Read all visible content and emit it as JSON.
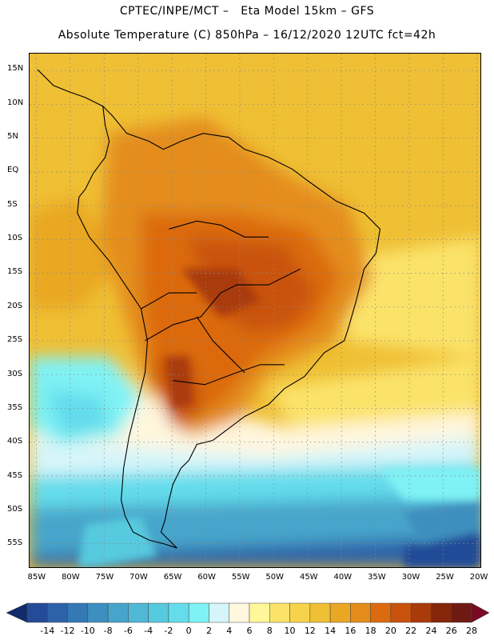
{
  "header": {
    "line1": "CPTEC/INPE/MCT –   Eta Model 15km – GFS",
    "line2": "Absolute Temperature (C) 850hPa – 16/12/2020 12UTC fct=42h"
  },
  "map": {
    "region": "South America",
    "lat_labels": [
      "15N",
      "10N",
      "5N",
      "EQ",
      "5S",
      "10S",
      "15S",
      "20S",
      "25S",
      "30S",
      "35S",
      "40S",
      "45S",
      "50S",
      "55S"
    ],
    "lon_labels": [
      "85W",
      "80W",
      "75W",
      "70W",
      "65W",
      "60W",
      "55W",
      "50W",
      "45W",
      "40W",
      "35W",
      "30W",
      "25W",
      "20W"
    ],
    "lat_range": [
      17.5,
      -58.5
    ],
    "lon_range": [
      -86,
      -19.5
    ],
    "gridlines": "dotted"
  },
  "colorbar": {
    "levels": [
      "-14",
      "-12",
      "-10",
      "-8",
      "-6",
      "-4",
      "-2",
      "0",
      "2",
      "4",
      "6",
      "8",
      "10",
      "12",
      "14",
      "16",
      "18",
      "20",
      "22",
      "24",
      "26",
      "28"
    ],
    "colors": [
      "#17377f",
      "#244b97",
      "#2d62a8",
      "#3478b4",
      "#3d8fbf",
      "#47a5cb",
      "#4fb9d6",
      "#56cade",
      "#64dceb",
      "#7ff2f5",
      "#d6f5fa",
      "#fff6de",
      "#fff799",
      "#fbe36a",
      "#f6d34a",
      "#efbf34",
      "#e9a724",
      "#e48d1a",
      "#dc6a0f",
      "#c9520c",
      "#a93b0b",
      "#85250a",
      "#6e1a12",
      "#8b0b2c"
    ],
    "end_left_color": "#102a6a",
    "end_right_color": "#7a0a24"
  }
}
